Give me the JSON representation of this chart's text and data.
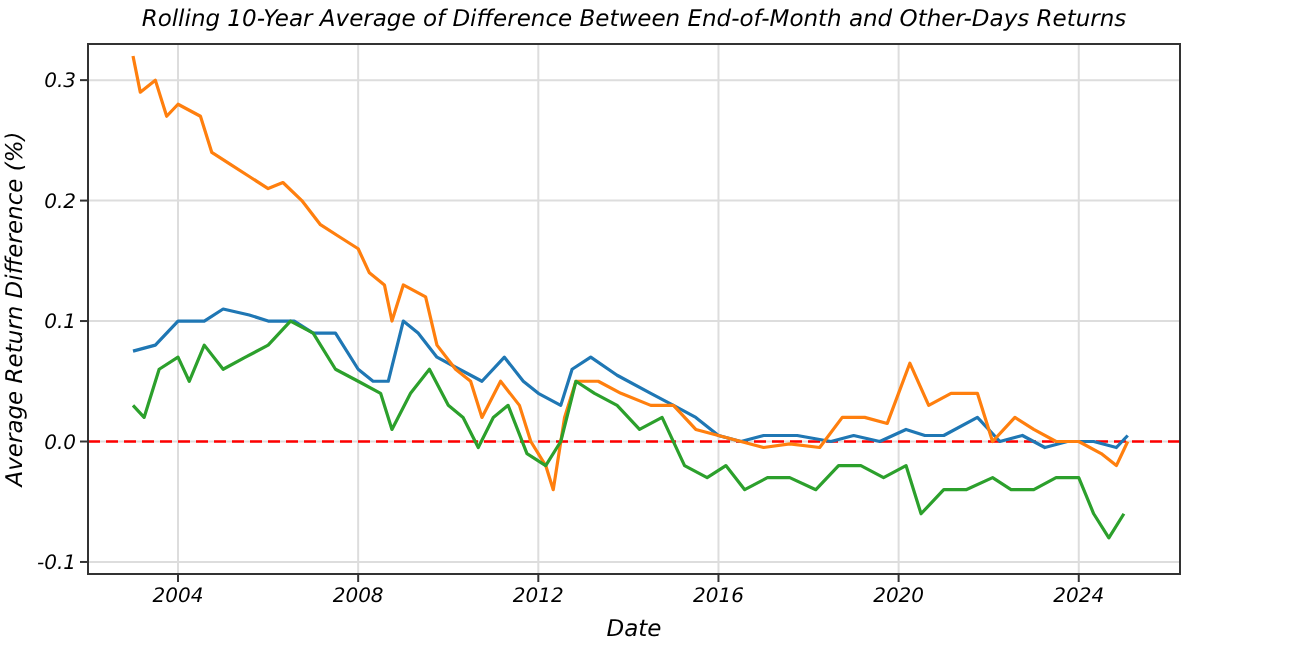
{
  "chart_data": {
    "type": "line",
    "title": "Rolling 10-Year Average of Difference Between End-of-Month and Other-Days Returns",
    "xlabel": "Date",
    "ylabel": "Average Return Difference (%)",
    "xlim": [
      "2002-01",
      "2026-04"
    ],
    "xticks": [
      "2004",
      "2008",
      "2012",
      "2016",
      "2020",
      "2024"
    ],
    "ylim": [
      -0.11,
      0.33
    ],
    "yticks": [
      -0.1,
      {
        "value": 0,
        "label": "0.0"
      },
      0.1,
      0.2,
      0.3
    ],
    "grid": true,
    "line_style": "solid",
    "marker": "none",
    "ref_lines": [
      {
        "axis": "y",
        "value": 0,
        "color": "#ff0000",
        "line_style": "dashed"
      }
    ],
    "series": [
      {
        "color": "#1f77b4",
        "x": [
          "2003-01",
          "2003-07",
          "2004-01",
          "2004-08",
          "2005-01",
          "2005-08",
          "2006-01",
          "2006-08",
          "2007-01",
          "2007-07",
          "2008-01",
          "2008-05",
          "2008-09",
          "2009-01",
          "2009-05",
          "2009-10",
          "2010-04",
          "2010-10",
          "2011-04",
          "2011-09",
          "2012-01",
          "2012-07",
          "2012-10",
          "2013-03",
          "2013-10",
          "2014-07",
          "2015-01",
          "2015-07",
          "2016-01",
          "2016-07",
          "2017-01",
          "2017-10",
          "2018-07",
          "2019-01",
          "2019-08",
          "2020-03",
          "2020-08",
          "2021-01",
          "2021-10",
          "2022-04",
          "2022-10",
          "2023-04",
          "2023-10",
          "2024-05",
          "2024-11",
          "2025-02"
        ],
        "values": [
          0.075,
          0.08,
          0.1,
          0.1,
          0.11,
          0.105,
          0.1,
          0.1,
          0.09,
          0.09,
          0.06,
          0.05,
          0.05,
          0.1,
          0.09,
          0.07,
          0.06,
          0.05,
          0.07,
          0.05,
          0.04,
          0.03,
          0.06,
          0.07,
          0.055,
          0.04,
          0.03,
          0.02,
          0.005,
          0.0,
          0.005,
          0.005,
          0.0,
          0.005,
          0.0,
          0.01,
          0.005,
          0.005,
          0.02,
          0.0,
          0.005,
          -0.005,
          0.0,
          0.0,
          -0.005,
          0.005
        ]
      },
      {
        "color": "#ff7f0e",
        "x": [
          "2003-01",
          "2003-03",
          "2003-07",
          "2003-10",
          "2004-01",
          "2004-07",
          "2004-10",
          "2005-03",
          "2005-08",
          "2006-01",
          "2006-05",
          "2006-10",
          "2007-03",
          "2007-08",
          "2008-01",
          "2008-04",
          "2008-08",
          "2008-10",
          "2009-01",
          "2009-07",
          "2009-10",
          "2010-03",
          "2010-07",
          "2010-10",
          "2011-03",
          "2011-08",
          "2011-11",
          "2012-03",
          "2012-05",
          "2012-08",
          "2012-11",
          "2013-05",
          "2013-11",
          "2014-07",
          "2015-01",
          "2015-07",
          "2016-01",
          "2016-07",
          "2017-01",
          "2017-08",
          "2018-04",
          "2018-10",
          "2019-04",
          "2019-10",
          "2020-04",
          "2020-09",
          "2021-03",
          "2021-10",
          "2022-02",
          "2022-08",
          "2023-01",
          "2023-07",
          "2024-01",
          "2024-07",
          "2024-11",
          "2025-02"
        ],
        "values": [
          0.32,
          0.29,
          0.3,
          0.27,
          0.28,
          0.27,
          0.24,
          0.23,
          0.22,
          0.21,
          0.215,
          0.2,
          0.18,
          0.17,
          0.16,
          0.14,
          0.13,
          0.1,
          0.13,
          0.12,
          0.08,
          0.06,
          0.05,
          0.02,
          0.05,
          0.03,
          0.0,
          -0.02,
          -0.04,
          0.02,
          0.05,
          0.05,
          0.04,
          0.03,
          0.03,
          0.01,
          0.005,
          0.0,
          -0.005,
          -0.002,
          -0.005,
          0.02,
          0.02,
          0.015,
          0.065,
          0.03,
          0.04,
          0.04,
          0.0,
          0.02,
          0.01,
          0.0,
          0.0,
          -0.01,
          -0.02,
          0.0
        ]
      },
      {
        "color": "#2ca02c",
        "x": [
          "2003-01",
          "2003-04",
          "2003-08",
          "2004-01",
          "2004-04",
          "2004-08",
          "2005-01",
          "2005-07",
          "2006-01",
          "2006-07",
          "2007-01",
          "2007-07",
          "2008-01",
          "2008-07",
          "2008-10",
          "2009-03",
          "2009-08",
          "2010-01",
          "2010-05",
          "2010-09",
          "2011-01",
          "2011-05",
          "2011-10",
          "2012-03",
          "2012-07",
          "2012-11",
          "2013-04",
          "2013-10",
          "2014-04",
          "2014-10",
          "2015-04",
          "2015-10",
          "2016-03",
          "2016-08",
          "2017-02",
          "2017-08",
          "2018-03",
          "2018-09",
          "2019-03",
          "2019-09",
          "2020-03",
          "2020-07",
          "2021-01",
          "2021-07",
          "2022-02",
          "2022-07",
          "2023-01",
          "2023-07",
          "2024-01",
          "2024-05",
          "2024-09",
          "2025-01"
        ],
        "values": [
          0.03,
          0.02,
          0.06,
          0.07,
          0.05,
          0.08,
          0.06,
          0.07,
          0.08,
          0.1,
          0.09,
          0.06,
          0.05,
          0.04,
          0.01,
          0.04,
          0.06,
          0.03,
          0.02,
          -0.005,
          0.02,
          0.03,
          -0.01,
          -0.02,
          0.0,
          0.05,
          0.04,
          0.03,
          0.01,
          0.02,
          -0.02,
          -0.03,
          -0.02,
          -0.04,
          -0.03,
          -0.03,
          -0.04,
          -0.02,
          -0.02,
          -0.03,
          -0.02,
          -0.06,
          -0.04,
          -0.04,
          -0.03,
          -0.04,
          -0.04,
          -0.03,
          -0.03,
          -0.06,
          -0.08,
          -0.06
        ]
      }
    ]
  }
}
